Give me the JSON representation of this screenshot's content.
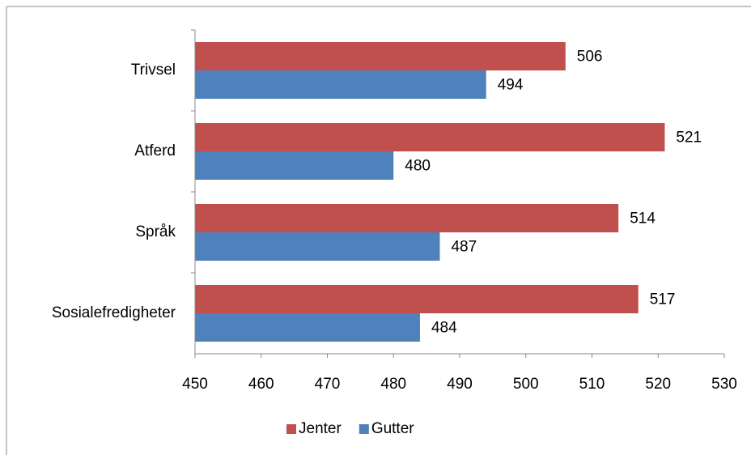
{
  "chart_data": {
    "type": "hbar",
    "categories": [
      "Trivsel",
      "Atferd",
      "Språk",
      "Sosialefredigheter"
    ],
    "series": [
      {
        "name": "Jenter",
        "color": "#c0504d",
        "values": [
          506,
          521,
          514,
          517
        ]
      },
      {
        "name": "Gutter",
        "color": "#4f81bd",
        "values": [
          494,
          480,
          487,
          484
        ]
      }
    ],
    "xlim": [
      450,
      530
    ],
    "xticks": [
      450,
      460,
      470,
      480,
      490,
      500,
      510,
      520,
      530
    ],
    "legend": "bottom"
  }
}
